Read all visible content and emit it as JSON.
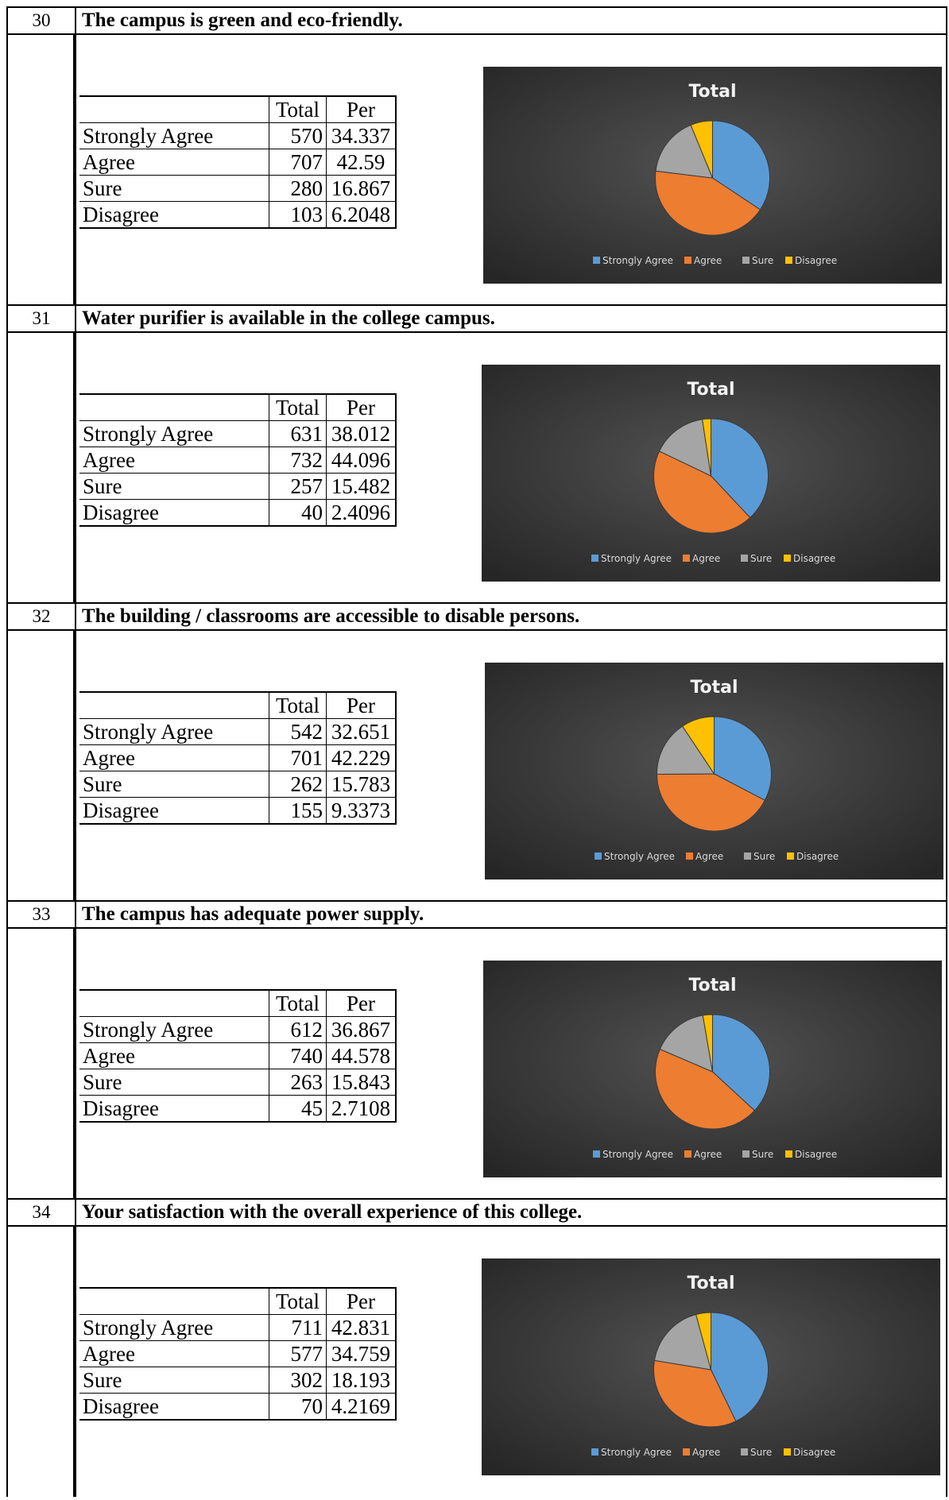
{
  "table_headers": {
    "total": "Total",
    "per": "Per"
  },
  "colors": {
    "strongly_agree": "#5B9BD5",
    "agree": "#ED7D31",
    "sure": "#A5A5A5",
    "disagree": "#FFC000"
  },
  "questions": [
    {
      "number": "30",
      "title": "The campus is green and eco-friendly.",
      "rows": [
        {
          "label": "Strongly Agree",
          "total": "570",
          "per": "34.337"
        },
        {
          "label": "Agree",
          "total": "707",
          "per": "42.59"
        },
        {
          "label": "Sure",
          "total": "280",
          "per": "16.867"
        },
        {
          "label": "Disagree",
          "total": "103",
          "per": "6.2048"
        }
      ],
      "chart_data": {
        "type": "pie",
        "title": "Total",
        "categories": [
          "Strongly Agree",
          "Agree",
          "Sure",
          "Disagree"
        ],
        "values": [
          570,
          707,
          280,
          103
        ],
        "legend": "bottom"
      }
    },
    {
      "number": "31",
      "title": "Water purifier is available in the college campus.",
      "rows": [
        {
          "label": "Strongly Agree",
          "total": "631",
          "per": "38.012"
        },
        {
          "label": "Agree",
          "total": "732",
          "per": "44.096"
        },
        {
          "label": "Sure",
          "total": "257",
          "per": "15.482"
        },
        {
          "label": "Disagree",
          "total": "40",
          "per": "2.4096"
        }
      ],
      "chart_data": {
        "type": "pie",
        "title": "Total",
        "categories": [
          "Strongly Agree",
          "Agree",
          "Sure",
          "Disagree"
        ],
        "values": [
          631,
          732,
          257,
          40
        ],
        "legend": "bottom"
      }
    },
    {
      "number": "32",
      "title": "The building / classrooms are accessible to disable persons.",
      "rows": [
        {
          "label": "Strongly Agree",
          "total": "542",
          "per": "32.651"
        },
        {
          "label": "Agree",
          "total": "701",
          "per": "42.229"
        },
        {
          "label": "Sure",
          "total": "262",
          "per": "15.783"
        },
        {
          "label": "Disagree",
          "total": "155",
          "per": "9.3373"
        }
      ],
      "chart_data": {
        "type": "pie",
        "title": "Total",
        "categories": [
          "Strongly Agree",
          "Agree",
          "Sure",
          "Disagree"
        ],
        "values": [
          542,
          701,
          262,
          155
        ],
        "legend": "bottom"
      }
    },
    {
      "number": "33",
      "title": "The campus has adequate power supply.",
      "rows": [
        {
          "label": "Strongly Agree",
          "total": "612",
          "per": "36.867"
        },
        {
          "label": "Agree",
          "total": "740",
          "per": "44.578"
        },
        {
          "label": "Sure",
          "total": "263",
          "per": "15.843"
        },
        {
          "label": "Disagree",
          "total": "45",
          "per": "2.7108"
        }
      ],
      "chart_data": {
        "type": "pie",
        "title": "Total",
        "categories": [
          "Strongly Agree",
          "Agree",
          "Sure",
          "Disagree"
        ],
        "values": [
          612,
          740,
          263,
          45
        ],
        "legend": "bottom"
      }
    },
    {
      "number": "34",
      "title": "Your satisfaction with the overall experience of this college.",
      "rows": [
        {
          "label": "Strongly Agree",
          "total": "711",
          "per": "42.831"
        },
        {
          "label": "Agree",
          "total": "577",
          "per": "34.759"
        },
        {
          "label": "Sure",
          "total": "302",
          "per": "18.193"
        },
        {
          "label": "Disagree",
          "total": "70",
          "per": "4.2169"
        }
      ],
      "chart_data": {
        "type": "pie",
        "title": "Total",
        "categories": [
          "Strongly Agree",
          "Agree",
          "Sure",
          "Disagree"
        ],
        "values": [
          711,
          577,
          302,
          70
        ],
        "legend": "bottom"
      }
    }
  ]
}
